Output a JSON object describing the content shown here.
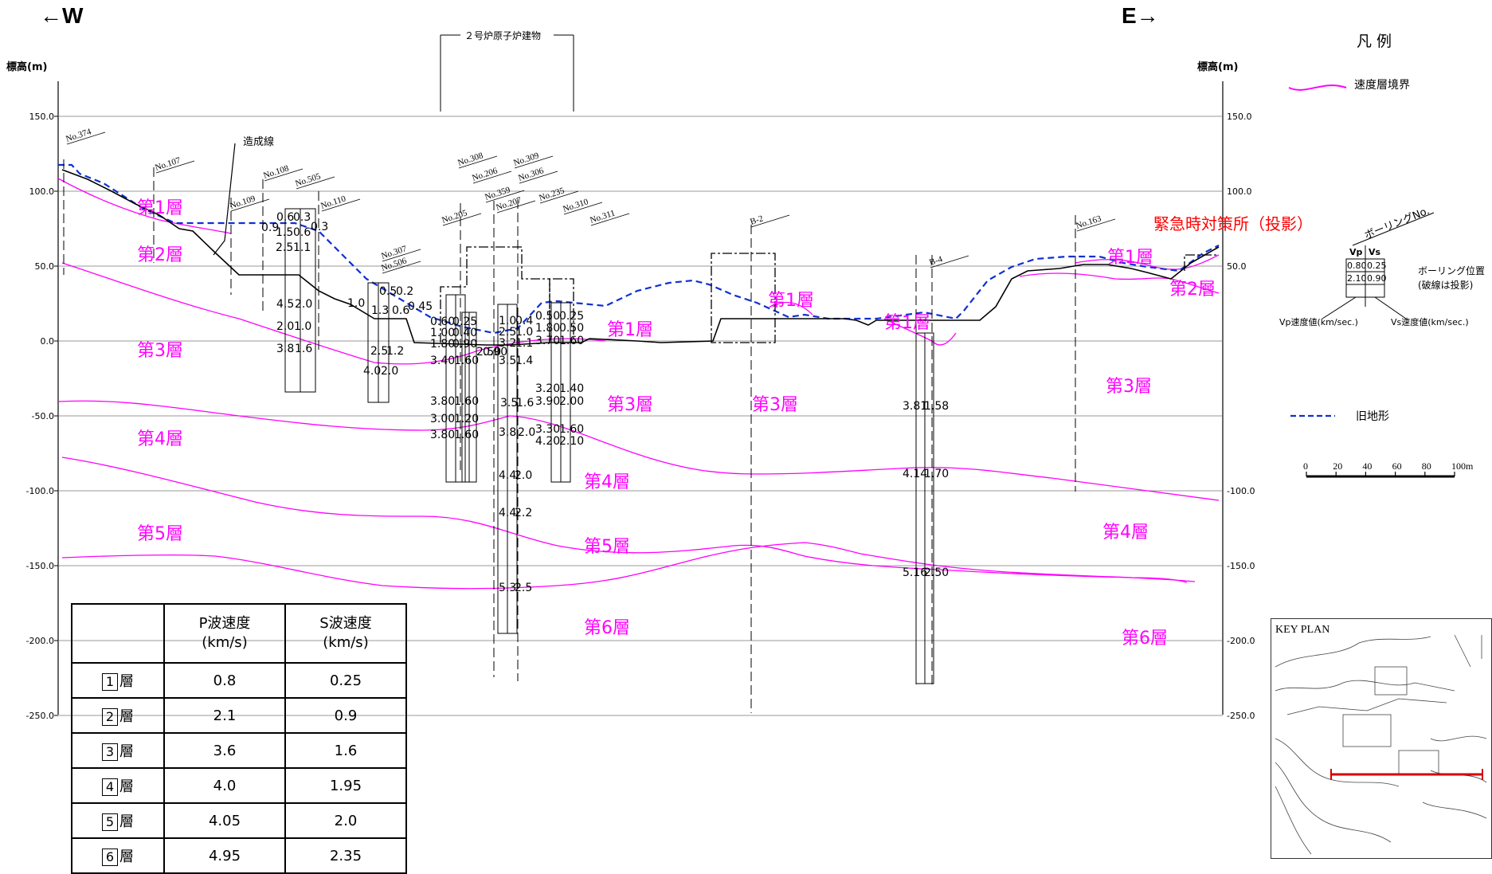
{
  "header": {
    "west": "←W",
    "east": "E→",
    "building": "２号炉原子炉建物",
    "axis_label_left": "標高(m)",
    "axis_label_right": "標高(m)"
  },
  "axis": {
    "ticks": [
      "150.0",
      "100.0",
      "50.0",
      "0.0",
      "-50.0",
      "-100.0",
      "-150.0",
      "-200.0",
      "-250.0"
    ],
    "right_ticks": [
      "150.0",
      "100.0",
      "50.0",
      "-100.0",
      "-150.0",
      "-200.0",
      "-250.0"
    ]
  },
  "labels": {
    "fill_line": "造成線",
    "emergency": "緊急時対策所（投影）"
  },
  "borings": [
    "No.374",
    "No.107",
    "No.109",
    "No.108",
    "No.505",
    "No.110",
    "No.307",
    "No.506",
    "No.205",
    "No.308",
    "No.206",
    "No.359",
    "No.207",
    "No.309",
    "No.306",
    "No.235",
    "No.310",
    "No.311",
    "B-2",
    "B-4",
    "No.163"
  ],
  "layer_labels": [
    "第1層",
    "第2層",
    "第3層",
    "第4層",
    "第5層",
    "第1層",
    "第3層",
    "第4層",
    "第5層",
    "第6層",
    "第1層",
    "第3層",
    "第1層",
    "第1層",
    "第2層",
    "第3層",
    "第4層",
    "第6層"
  ],
  "velocity_values": [
    "0.6",
    "0.3",
    "1.5",
    "0.6",
    "2.5",
    "1.1",
    "4.5",
    "2.0",
    "2.0",
    "1.0",
    "3.8",
    "1.6",
    "0.9",
    "0.3",
    "0.5",
    "0.2",
    "1.0",
    "1.3",
    "0.6",
    "0.45",
    "2.5",
    "1.2",
    "4.0",
    "2.0",
    "0.60",
    "0.25",
    "1.00",
    "0.40",
    "1.80",
    "0.90",
    "3.40",
    "1.60",
    "2.50",
    "0.90",
    "1.0",
    "0.4",
    "2.5",
    "1.0",
    "3.2",
    "1.1",
    "3.5",
    "1.4",
    "3.5",
    "1.6",
    "3.8",
    "2.0",
    "4.4",
    "2.0",
    "4.4",
    "2.2",
    "5.3",
    "2.5",
    "0.50",
    "0.25",
    "1.80",
    "0.50",
    "3.70",
    "1.60",
    "3.20",
    "1.40",
    "3.90",
    "2.00",
    "3.30",
    "1.60",
    "4.20",
    "2.10",
    "3.80",
    "1.60",
    "3.00",
    "1.20",
    "3.80",
    "1.60",
    "3.81",
    "1.58",
    "4.14",
    "1.70",
    "5.16",
    "2.50"
  ],
  "legend": {
    "title": "凡 例",
    "boundary": "速度層境界",
    "old_terrain": "旧地形",
    "boring_no": "ボーリングNo.",
    "vp": "Vp",
    "vs": "Vs",
    "vp_sample": "0.80",
    "vs_sample": "0.25",
    "vp_sample2": "2.10",
    "vs_sample2": "0.90",
    "boring_pos": "ボーリング位置",
    "boring_pos_note": "(破線は投影)",
    "vp_desc": "Vp速度値(km/sec.)",
    "vs_desc": "Vs速度値(km/sec.)",
    "scale": [
      "0",
      "20",
      "40",
      "60",
      "80",
      "100m"
    ],
    "boundary_color": "#ff00ff",
    "old_terrain_color": "#1030d0"
  },
  "table": {
    "headers": [
      "",
      "P波速度\n(km/s)",
      "S波速度\n(km/s)"
    ],
    "h1a": "P波速度",
    "h1b": "(km/s)",
    "h2a": "S波速度",
    "h2b": "(km/s)",
    "rows": [
      {
        "num": "1",
        "suffix": "層",
        "p": "0.8",
        "s": "0.25"
      },
      {
        "num": "2",
        "suffix": "層",
        "p": "2.1",
        "s": "0.9"
      },
      {
        "num": "3",
        "suffix": "層",
        "p": "3.6",
        "s": "1.6"
      },
      {
        "num": "4",
        "suffix": "層",
        "p": "4.0",
        "s": "1.95"
      },
      {
        "num": "5",
        "suffix": "層",
        "p": "4.05",
        "s": "2.0"
      },
      {
        "num": "6",
        "suffix": "層",
        "p": "4.95",
        "s": "2.35"
      }
    ]
  },
  "keyplan": {
    "title": "KEY PLAN"
  }
}
